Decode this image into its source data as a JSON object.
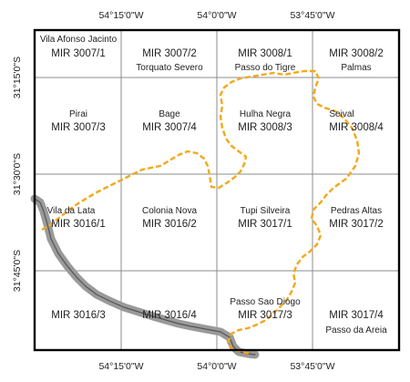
{
  "map": {
    "top_longitude_labels": [
      "54°15'0\"W",
      "54°0'0\"W",
      "53°45'0\"W"
    ],
    "bottom_longitude_labels": [
      "54°15'0\"W",
      "54°0'0\"W",
      "53°45'0\"W"
    ],
    "latitude_labels": [
      "31°15'0\"S",
      "31°30'0\"S",
      "31°45'0\"S"
    ],
    "colors": {
      "frame": "#000000",
      "grid": "#8c8c8c",
      "boundary": "#f2a91b",
      "border_band": "#9a9a9a",
      "border_line": "#555555"
    },
    "sheets": [
      {
        "code": "MIR 3007/1",
        "place": "Vila Afonso Jacinto"
      },
      {
        "code": "MIR 3007/2",
        "place": "Torquato Severo"
      },
      {
        "code": "MIR 3008/1",
        "place": "Passo do Tigre"
      },
      {
        "code": "MIR 3008/2",
        "place": "Palmas"
      },
      {
        "code": "MIR 3007/3",
        "place": "Pirai"
      },
      {
        "code": "MIR 3007/4",
        "place": "Bage"
      },
      {
        "code": "MIR 3008/3",
        "place": "Hulha Negra"
      },
      {
        "code": "MIR 3008/4",
        "place": "Seival"
      },
      {
        "code": "MIR 3016/1",
        "place": "Vila da Lata"
      },
      {
        "code": "MIR 3016/2",
        "place": "Colonia Nova"
      },
      {
        "code": "MIR 3017/1",
        "place": "Tupi Silveira"
      },
      {
        "code": "MIR 3017/2",
        "place": "Pedras Altas"
      },
      {
        "code": "MIR 3016/3",
        "place": ""
      },
      {
        "code": "MIR 3016/4",
        "place": ""
      },
      {
        "code": "MIR 3017/3",
        "place": "Passo Sao Diogo"
      },
      {
        "code": "MIR 3017/4",
        "place": "Passo da Areia"
      }
    ]
  }
}
